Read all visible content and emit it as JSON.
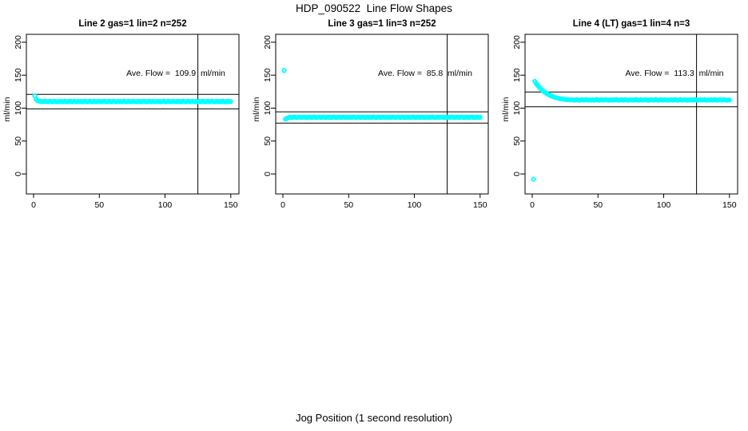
{
  "title": "HDP_090522  Line Flow Shapes",
  "xlabel": "Jog Position (1 second resolution)",
  "colors": {
    "points": "#00FFFF",
    "axis": "#000000",
    "background": "#FFFFFF"
  },
  "chart_data": [
    {
      "type": "scatter",
      "title": "Line 2 gas=1 lin=2 n=252",
      "annotation": "Ave. Flow =  109.9  ml/min",
      "ave_flow": 109.9,
      "n": 252,
      "ylabel": "ml/min",
      "xticks": [
        0,
        50,
        100,
        150
      ],
      "yticks": [
        0,
        50,
        100,
        150,
        200
      ],
      "xlim": [
        -5.5,
        156
      ],
      "ylim": [
        -30,
        212
      ],
      "grid": false,
      "legend": "none",
      "hlines": [
        120.9,
        98.9
      ],
      "vline": 125,
      "series": {
        "x_start": 1,
        "x_step": 1,
        "y": [
          118.6,
          113.4,
          111.3,
          110.6,
          110.3,
          110.3,
          109.6,
          110.1,
          110.6,
          109.8,
          109.5,
          110.2,
          110.4,
          109.7,
          110.0,
          110.5,
          109.9,
          109.6,
          110.2,
          109.8,
          110.3,
          109.6,
          110.1,
          110.6,
          109.8,
          109.5,
          110.2,
          110.4,
          109.7,
          110.0,
          110.5,
          109.9,
          109.6,
          110.2,
          109.8,
          110.3,
          109.6,
          110.1,
          110.6,
          109.8,
          109.5,
          110.2,
          110.4,
          109.7,
          110.0,
          110.5,
          109.9,
          109.6,
          110.2,
          109.8,
          110.3,
          109.6,
          110.1,
          110.6,
          109.8,
          109.5,
          110.2,
          110.4,
          109.7,
          110.0,
          110.5,
          109.9,
          109.6,
          110.2,
          109.8,
          110.3,
          109.6,
          110.1,
          110.6,
          109.8,
          109.5,
          110.2,
          110.4,
          109.7,
          110.0,
          110.5,
          109.9,
          109.6,
          110.2,
          109.8,
          110.3,
          109.6,
          110.1,
          110.6,
          109.8,
          109.5,
          110.2,
          110.4,
          109.7,
          110.0,
          110.5,
          109.9,
          109.6,
          110.2,
          109.8,
          110.3,
          109.6,
          110.1,
          110.6,
          109.8,
          109.5,
          110.2,
          110.4,
          109.7,
          110.0,
          110.5,
          109.9,
          109.6,
          110.2,
          109.8,
          110.3,
          109.6,
          110.1,
          110.6,
          109.8,
          109.5,
          110.2,
          110.4,
          109.7,
          110.0,
          110.5,
          109.9,
          109.6,
          110.2,
          109.8,
          110.3,
          109.6,
          110.1,
          110.6,
          109.8,
          109.5,
          110.2,
          110.4,
          109.7,
          110.0,
          110.5,
          109.9,
          109.6,
          110.2,
          109.8,
          110.3,
          109.6,
          110.1,
          110.6,
          109.8,
          109.5,
          110.2,
          110.4,
          109.7,
          110.0
        ]
      },
      "outliers": []
    },
    {
      "type": "scatter",
      "title": "Line 3 gas=1 lin=3 n=252",
      "annotation": "Ave. Flow =  85.8  ml/min",
      "ave_flow": 85.8,
      "n": 252,
      "ylabel": "ml/min",
      "xticks": [
        0,
        50,
        100,
        150
      ],
      "yticks": [
        0,
        50,
        100,
        150,
        200
      ],
      "xlim": [
        -5.5,
        156
      ],
      "ylim": [
        -30,
        212
      ],
      "grid": false,
      "legend": "none",
      "hlines": [
        94.4,
        77.2
      ],
      "vline": 125,
      "series": {
        "x_start": 2,
        "x_step": 1,
        "y": [
          83.3,
          84.6,
          85.4,
          85.8,
          86.2,
          85.7,
          86.1,
          86.5,
          85.8,
          85.6,
          86.2,
          86.3,
          85.8,
          86.0,
          86.4,
          85.9,
          85.7,
          86.2,
          85.8,
          86.2,
          85.7,
          86.1,
          86.5,
          85.8,
          85.6,
          86.2,
          86.3,
          85.8,
          86.0,
          86.4,
          85.9,
          85.7,
          86.2,
          85.8,
          86.2,
          85.7,
          86.1,
          86.5,
          85.8,
          85.6,
          86.2,
          86.3,
          85.8,
          86.0,
          86.4,
          85.9,
          85.7,
          86.2,
          85.8,
          86.2,
          85.7,
          86.1,
          86.5,
          85.8,
          85.6,
          86.2,
          86.3,
          85.8,
          86.0,
          86.4,
          85.9,
          85.7,
          86.2,
          85.8,
          86.2,
          85.7,
          86.1,
          86.5,
          85.8,
          85.6,
          86.2,
          86.3,
          85.8,
          86.0,
          86.4,
          85.9,
          85.7,
          86.2,
          85.8,
          86.2,
          85.7,
          86.1,
          86.5,
          85.8,
          85.6,
          86.2,
          86.3,
          85.8,
          86.0,
          86.4,
          85.9,
          85.7,
          86.2,
          85.8,
          86.2,
          85.7,
          86.1,
          86.5,
          85.8,
          85.6,
          86.2,
          86.3,
          85.8,
          86.0,
          86.4,
          85.9,
          85.7,
          86.2,
          85.8,
          86.2,
          85.7,
          86.1,
          86.5,
          85.8,
          85.6,
          86.2,
          86.3,
          85.8,
          86.0,
          86.4,
          85.9,
          85.7,
          86.2,
          85.8,
          86.2,
          85.7,
          86.1,
          86.5,
          85.8,
          85.6,
          86.2,
          86.3,
          85.8,
          86.0,
          86.4,
          85.9,
          85.7,
          86.2,
          85.8,
          86.2,
          85.7,
          86.1,
          86.5,
          85.8,
          85.6,
          86.2,
          86.3,
          85.8,
          86.0
        ]
      },
      "outliers": [
        [
          1,
          157
        ]
      ]
    },
    {
      "type": "scatter",
      "title": "Line 4 (LT) gas=1 lin=4 n=3",
      "annotation": "Ave. Flow =  113.3  ml/min",
      "ave_flow": 113.3,
      "n": 3,
      "ylabel": "ml/min",
      "xticks": [
        0,
        50,
        100,
        150
      ],
      "yticks": [
        0,
        50,
        100,
        150,
        200
      ],
      "xlim": [
        -5.5,
        156
      ],
      "ylim": [
        -30,
        212
      ],
      "grid": false,
      "legend": "none",
      "hlines": [
        124.6,
        102.0
      ],
      "vline": 125,
      "series": {
        "x_start": 2,
        "x_step": 1,
        "y": [
          140.5,
          137.6,
          135.0,
          132.6,
          130.4,
          128.4,
          126.6,
          125.0,
          123.5,
          122.2,
          121.0,
          119.9,
          118.9,
          118.1,
          117.3,
          116.6,
          116.0,
          115.4,
          114.9,
          114.5,
          114.1,
          113.8,
          113.5,
          113.2,
          113.0,
          112.8,
          112.7,
          112.5,
          112.4,
          112.7,
          112.0,
          112.5,
          113.0,
          112.2,
          111.9,
          112.6,
          112.8,
          112.1,
          112.4,
          112.9,
          112.3,
          112.0,
          112.6,
          112.2,
          112.7,
          112.0,
          112.5,
          113.0,
          112.2,
          111.9,
          112.6,
          112.8,
          112.1,
          112.4,
          112.9,
          112.3,
          112.0,
          112.6,
          112.2,
          112.7,
          112.0,
          112.5,
          113.0,
          112.2,
          111.9,
          112.6,
          112.8,
          112.1,
          112.4,
          112.9,
          112.3,
          112.0,
          112.6,
          112.2,
          112.7,
          112.0,
          112.5,
          113.0,
          112.2,
          111.9,
          112.6,
          112.8,
          112.1,
          112.4,
          112.9,
          112.3,
          112.0,
          112.6,
          112.2,
          112.7,
          112.0,
          112.5,
          113.0,
          112.2,
          111.9,
          112.6,
          112.8,
          112.1,
          112.4,
          112.9,
          112.3,
          112.0,
          112.6,
          112.2,
          112.7,
          112.0,
          112.5,
          113.0,
          112.2,
          111.9,
          112.6,
          112.8,
          112.1,
          112.4,
          112.9,
          112.3,
          112.0,
          112.6,
          112.2,
          112.7,
          112.0,
          112.5,
          113.0,
          112.2,
          111.9,
          112.6,
          112.8,
          112.1,
          112.4,
          112.9,
          112.3,
          112.0,
          112.6,
          112.2,
          112.7,
          112.0,
          112.5,
          113.0,
          112.2,
          111.9,
          112.6,
          112.8,
          112.1,
          112.4,
          112.9,
          112.3,
          112.0,
          112.6,
          112.2
        ]
      },
      "outliers": [
        [
          1,
          -8
        ]
      ]
    }
  ]
}
